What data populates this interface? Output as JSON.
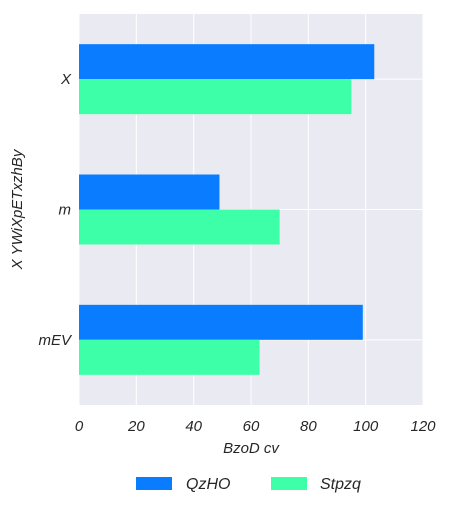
{
  "chart_data": {
    "type": "bar",
    "orientation": "horizontal",
    "categories": [
      "X",
      "m",
      "mEV"
    ],
    "series": [
      {
        "name": "QzHO",
        "color": "#0a7cff",
        "values": [
          103,
          49,
          99
        ]
      },
      {
        "name": "Stpzq",
        "color": "#3dffa8",
        "values": [
          95,
          70,
          63
        ]
      }
    ],
    "xlabel": "BzoD cv",
    "ylabel": "X YWiXpETxzhBy",
    "xlim": [
      0,
      120
    ],
    "xticks": [
      "0",
      "20",
      "40",
      "60",
      "80",
      "100",
      "120"
    ],
    "grid": true,
    "background": "#eaeaf2",
    "legend_position": "bottom-center"
  }
}
